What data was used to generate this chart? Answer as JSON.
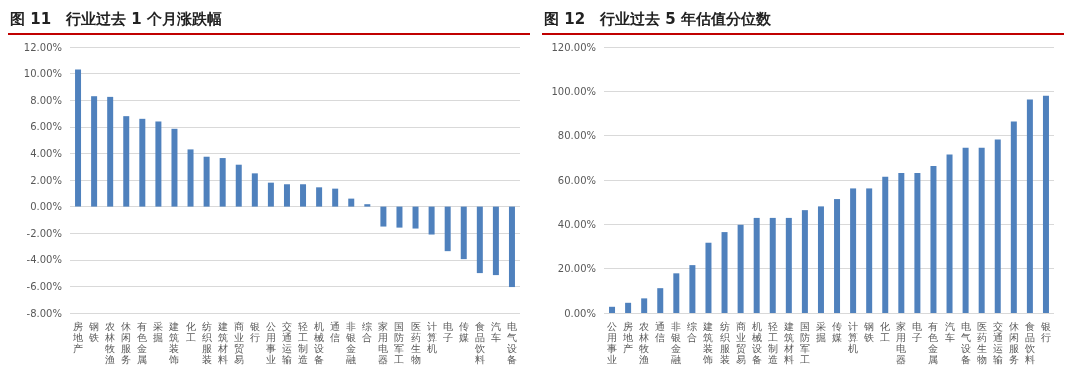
{
  "chart_data": [
    {
      "type": "bar",
      "title": "图 11　行业过去 1 个月涨跌幅",
      "categories": [
        "房地产",
        "钢铁",
        "农林牧渔",
        "休闲服务",
        "有色金属",
        "采掘",
        "建筑装饰",
        "化工",
        "纺织服装",
        "建筑材料",
        "商业贸易",
        "银行",
        "公用事业",
        "交通运输",
        "轻工制造",
        "机械设备",
        "通信",
        "非银金融",
        "综合",
        "家用电器",
        "国防军工",
        "医药生物",
        "计算机",
        "电子",
        "传媒",
        "食品饮料",
        "汽车",
        "电气设备"
      ],
      "values": [
        10.3,
        8.3,
        8.25,
        6.8,
        6.6,
        6.4,
        5.85,
        4.3,
        3.75,
        3.65,
        3.15,
        2.5,
        1.8,
        1.68,
        1.68,
        1.45,
        1.35,
        0.6,
        0.18,
        -1.5,
        -1.58,
        -1.65,
        -2.1,
        -3.35,
        -3.95,
        -5.0,
        -5.15,
        -6.05
      ],
      "color": "#4f81bd",
      "ylim": [
        -8,
        12
      ],
      "yticks": [
        {
          "value": -8,
          "label": "-8.00%"
        },
        {
          "value": -6,
          "label": "-6.00%"
        },
        {
          "value": -4,
          "label": "-4.00%"
        },
        {
          "value": -2,
          "label": "-2.00%"
        },
        {
          "value": 0,
          "label": "0.00%"
        },
        {
          "value": 2,
          "label": "2.00%"
        },
        {
          "value": 4,
          "label": "4.00%"
        },
        {
          "value": 6,
          "label": "6.00%"
        },
        {
          "value": 8,
          "label": "8.00%"
        },
        {
          "value": 10,
          "label": "10.00%"
        },
        {
          "value": 12,
          "label": "12.00%"
        }
      ],
      "grid": "y"
    },
    {
      "type": "bar",
      "title": "图 12　行业过去 5 年估值分位数",
      "categories": [
        "公用事业",
        "房地产",
        "农林牧渔",
        "通信",
        "非银金融",
        "综合",
        "建筑装饰",
        "纺织服装",
        "商业贸易",
        "机械设备",
        "轻工制造",
        "建筑材料",
        "国防军工",
        "采掘",
        "传媒",
        "计算机",
        "钢铁",
        "化工",
        "家用电器",
        "电子",
        "有色金属",
        "汽车",
        "电气设备",
        "医药生物",
        "交通运输",
        "休闲服务",
        "食品饮料",
        "银行"
      ],
      "values": [
        2.8,
        4.6,
        6.6,
        11.2,
        17.9,
        21.6,
        31.7,
        36.5,
        39.8,
        42.9,
        42.9,
        42.9,
        46.4,
        48.1,
        51.4,
        56.2,
        56.2,
        61.5,
        63.2,
        63.2,
        66.3,
        71.5,
        74.6,
        74.6,
        78.3,
        86.4,
        96.3,
        98.0
      ],
      "color": "#4f81bd",
      "ylim": [
        0,
        120
      ],
      "yticks": [
        {
          "value": 0,
          "label": "0.00%"
        },
        {
          "value": 20,
          "label": "20.00%"
        },
        {
          "value": 40,
          "label": "40.00%"
        },
        {
          "value": 60,
          "label": "60.00%"
        },
        {
          "value": 80,
          "label": "80.00%"
        },
        {
          "value": 100,
          "label": "100.00%"
        },
        {
          "value": 120,
          "label": "120.00%"
        }
      ],
      "grid": "y"
    }
  ]
}
